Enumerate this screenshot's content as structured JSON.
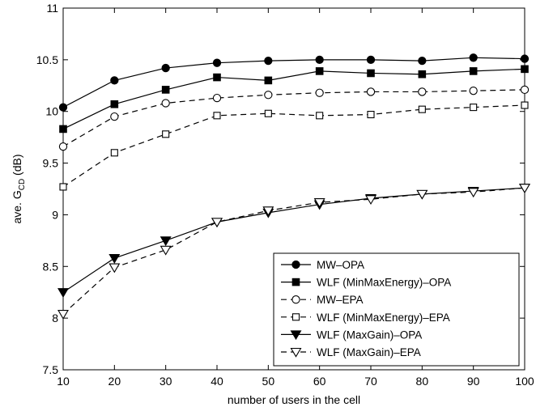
{
  "chart_data": {
    "type": "line",
    "xlabel": "number of users in the cell",
    "ylabel": {
      "main": "ave. G",
      "sub": "CD",
      "unit": " (dB)"
    },
    "xlim": [
      10,
      100
    ],
    "ylim": [
      7.5,
      11
    ],
    "xticks": [
      10,
      20,
      30,
      40,
      50,
      60,
      70,
      80,
      90,
      100
    ],
    "yticks": [
      7.5,
      8,
      8.5,
      9,
      9.5,
      10,
      10.5,
      11
    ],
    "grid": false,
    "legend_position": "bottom-right",
    "x": [
      10,
      20,
      30,
      40,
      50,
      60,
      70,
      80,
      90,
      100
    ],
    "series": [
      {
        "name": "MW–OPA",
        "style": "solid",
        "marker": "filled-circle",
        "values": [
          10.04,
          10.3,
          10.42,
          10.47,
          10.49,
          10.5,
          10.5,
          10.49,
          10.52,
          10.51
        ]
      },
      {
        "name": "WLF (MinMaxEnergy)–OPA",
        "style": "solid",
        "marker": "filled-square",
        "values": [
          9.83,
          10.07,
          10.21,
          10.33,
          10.3,
          10.39,
          10.37,
          10.36,
          10.39,
          10.41
        ]
      },
      {
        "name": "MW–EPA",
        "style": "dashed",
        "marker": "open-circle",
        "values": [
          9.66,
          9.95,
          10.08,
          10.13,
          10.16,
          10.18,
          10.19,
          10.19,
          10.2,
          10.21
        ]
      },
      {
        "name": "WLF (MinMaxEnergy)–EPA",
        "style": "dashed",
        "marker": "open-square",
        "values": [
          9.27,
          9.6,
          9.78,
          9.96,
          9.98,
          9.96,
          9.97,
          10.02,
          10.04,
          10.06
        ]
      },
      {
        "name": "WLF (MaxGain)–OPA",
        "style": "solid",
        "marker": "filled-triangle-down",
        "values": [
          8.25,
          8.58,
          8.75,
          8.93,
          9.02,
          9.1,
          9.16,
          9.2,
          9.23,
          9.26
        ]
      },
      {
        "name": "WLF (MaxGain)–EPA",
        "style": "dashed",
        "marker": "open-triangle-down",
        "values": [
          8.04,
          8.49,
          8.66,
          8.93,
          9.04,
          9.12,
          9.15,
          9.2,
          9.22,
          9.26
        ]
      }
    ]
  }
}
